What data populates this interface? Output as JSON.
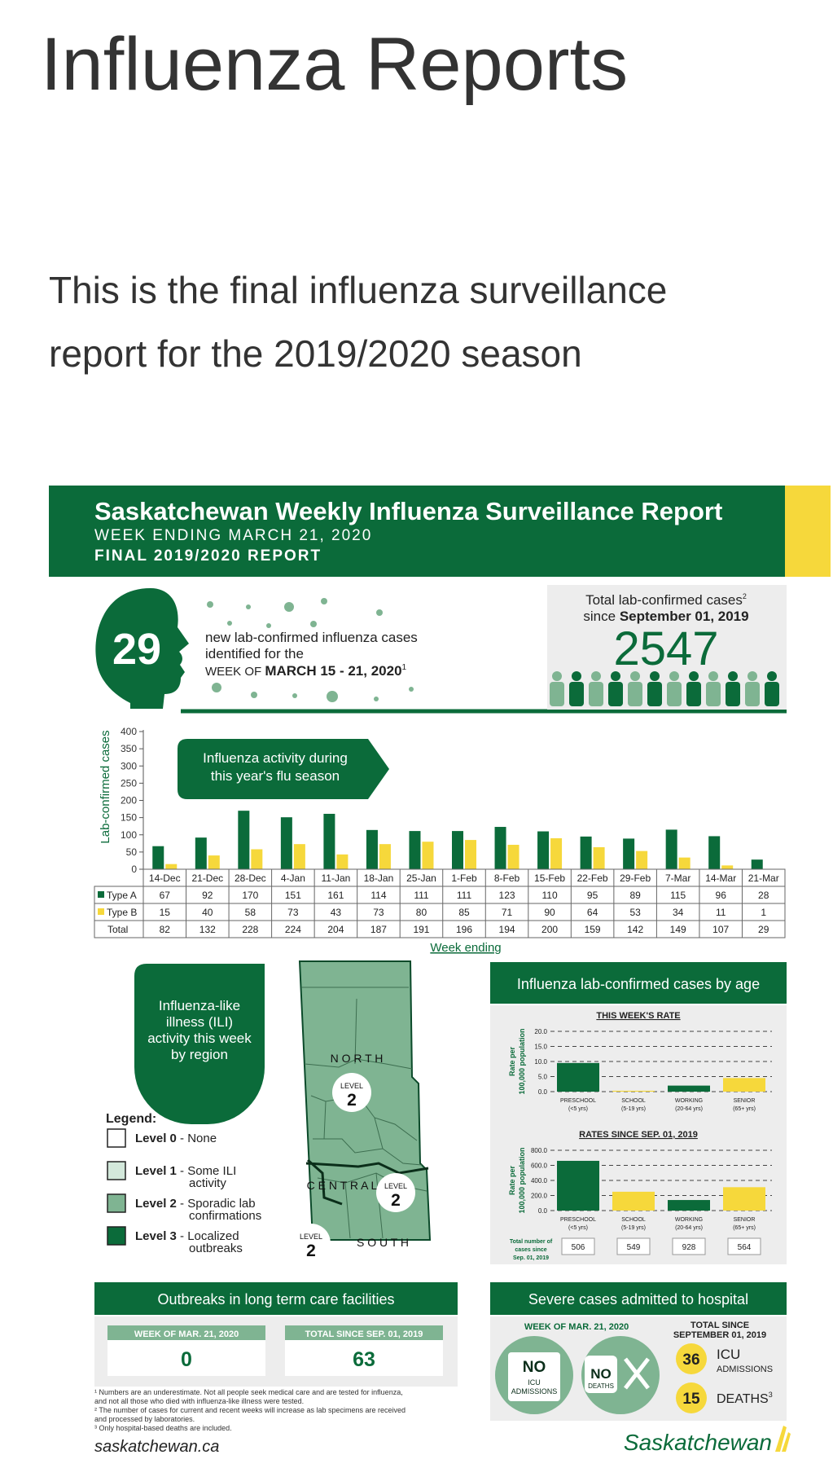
{
  "page": {
    "title": "Influenza Reports",
    "intro": [
      "This is the final influenza surveillance",
      "report for the 2019/2020 season"
    ]
  },
  "report": {
    "title": "Saskatchewan Weekly Influenza Surveillance Report",
    "week_ending": "WEEK ENDING MARCH 21, 2020",
    "final": "FINAL 2019/2020 REPORT",
    "new_cases": "29",
    "new_cases_text": [
      "new lab-confirmed influenza cases",
      "identified for the"
    ],
    "new_cases_week_prefix": "WEEK OF",
    "new_cases_week": "MARCH 15 - 21, 2020",
    "new_cases_week_sup": "1",
    "total_label_1": "Total lab-confirmed cases",
    "total_label_1_sup": "2",
    "total_label_2_prefix": "since",
    "total_label_2": "September 01, 2019",
    "total_cases": "2547",
    "activity_callout": [
      "Influenza activity during",
      "this year's flu season"
    ],
    "colors": {
      "green": "#0b6b3a",
      "yellow": "#f6d83b",
      "light_green": "#d3e8db",
      "mid_green": "#7fb492"
    }
  },
  "chart_data": [
    {
      "type": "bar",
      "title": "",
      "xlabel": "Week ending",
      "ylabel": "Lab-confirmed cases",
      "ylim": [
        0,
        400
      ],
      "yticks": [
        "0",
        "50",
        "100",
        "150",
        "200",
        "250",
        "300",
        "350",
        "400"
      ],
      "categories": [
        "14-Dec",
        "21-Dec",
        "28-Dec",
        "4-Jan",
        "11-Jan",
        "18-Jan",
        "25-Jan",
        "1-Feb",
        "8-Feb",
        "15-Feb",
        "22-Feb",
        "29-Feb",
        "7-Mar",
        "14-Mar",
        "21-Mar"
      ],
      "series": [
        {
          "name": "Type A",
          "color": "#0b6b3a",
          "values": [
            67,
            92,
            170,
            151,
            161,
            114,
            111,
            111,
            123,
            110,
            95,
            89,
            115,
            96,
            28
          ]
        },
        {
          "name": "Type B",
          "color": "#f6d83b",
          "values": [
            15,
            40,
            58,
            73,
            43,
            73,
            80,
            85,
            71,
            90,
            64,
            53,
            34,
            11,
            1
          ]
        }
      ],
      "total_label": "Total",
      "totals": [
        82,
        132,
        228,
        224,
        204,
        187,
        191,
        196,
        194,
        200,
        159,
        142,
        149,
        107,
        29
      ],
      "grid": false
    },
    {
      "type": "bar",
      "title": "THIS WEEK'S RATE",
      "ylabel": "Rate per 100,000 population",
      "ylim": [
        0,
        20
      ],
      "yticks": [
        "0.0",
        "5.0",
        "10.0",
        "15.0",
        "20.0"
      ],
      "categories": [
        "PRESCHOOL",
        "SCHOOL",
        "WORKING",
        "SENIOR"
      ],
      "sublabels": [
        "(<5 yrs)",
        "(5-19 yrs)",
        "(20-64 yrs)",
        "(65+ yrs)"
      ],
      "values": [
        9.5,
        0.3,
        2.0,
        4.5
      ],
      "colors": [
        "#0b6b3a",
        "#f6d83b",
        "#0b6b3a",
        "#f6d83b"
      ],
      "grid": true
    },
    {
      "type": "bar",
      "title": "RATES SINCE SEP. 01, 2019",
      "ylabel": "Rate per 100,000 population",
      "ylim": [
        0,
        800
      ],
      "yticks": [
        "0.0",
        "200.0",
        "400.0",
        "600.0",
        "800.0"
      ],
      "categories": [
        "PRESCHOOL",
        "SCHOOL",
        "WORKING",
        "SENIOR"
      ],
      "sublabels": [
        "(<5 yrs)",
        "(5-19 yrs)",
        "(20-64 yrs)",
        "(65+ yrs)"
      ],
      "values": [
        660,
        250,
        140,
        310
      ],
      "colors": [
        "#0b6b3a",
        "#f6d83b",
        "#0b6b3a",
        "#f6d83b"
      ],
      "totals_label": [
        "Total number of",
        "cases since",
        "Sep. 01, 2019"
      ],
      "totals": [
        "506",
        "549",
        "928",
        "564"
      ],
      "grid": true
    }
  ],
  "ili": {
    "title": [
      "Influenza-like",
      "illness (ILI)",
      "activity this week",
      "by region"
    ],
    "legend_title": "Legend:",
    "legend": [
      {
        "level": "Level 0",
        "desc": [
          "- None"
        ],
        "color": "#ffffff"
      },
      {
        "level": "Level 1",
        "desc": [
          "- Some ILI",
          "activity"
        ],
        "color": "#d3e8db"
      },
      {
        "level": "Level 2",
        "desc": [
          "- Sporadic lab",
          "confirmations"
        ],
        "color": "#7fb492"
      },
      {
        "level": "Level 3",
        "desc": [
          "- Localized",
          "outbreaks"
        ],
        "color": "#0b6b3a"
      }
    ],
    "regions": {
      "north": "N O R T H",
      "central": "C E N T R A L",
      "south": "S O U T H"
    },
    "level_word": "LEVEL",
    "region_levels": [
      "2",
      "2",
      "2"
    ]
  },
  "age": {
    "title": "Influenza lab-confirmed cases by age"
  },
  "outbreaks": {
    "title": "Outbreaks in long term care facilities",
    "week_label": "WEEK OF MAR. 21, 2020",
    "week_value": "0",
    "total_label": "TOTAL SINCE SEP. 01, 2019",
    "total_value": "63"
  },
  "severe": {
    "title": "Severe cases admitted to hospital",
    "week_label": "WEEK OF MAR. 21, 2020",
    "total_label": [
      "TOTAL SINCE",
      "SEPTEMBER 01, 2019"
    ],
    "icu_word": "NO",
    "icu_sub": [
      "ICU",
      "ADMISSIONS"
    ],
    "deaths_word": "NO",
    "deaths_sub": "DEATHS",
    "icu_total": "36",
    "icu_total_label": [
      "ICU",
      "ADMISSIONS"
    ],
    "deaths_total": "15",
    "deaths_total_label": "DEATHS",
    "deaths_total_sup": "3"
  },
  "footnotes": [
    "¹ Numbers are an underestimate. Not all people seek medical care and are tested for influenza,",
    "   and not all those who died with influenza-like illness were tested.",
    "² The number of cases for current and recent weeks will increase as lab specimens are received",
    "   and processed by laboratories.",
    "³ Only hospital-based deaths are included."
  ],
  "footer": {
    "site": "saskatchewan.ca",
    "logo": "Saskatchewan"
  }
}
